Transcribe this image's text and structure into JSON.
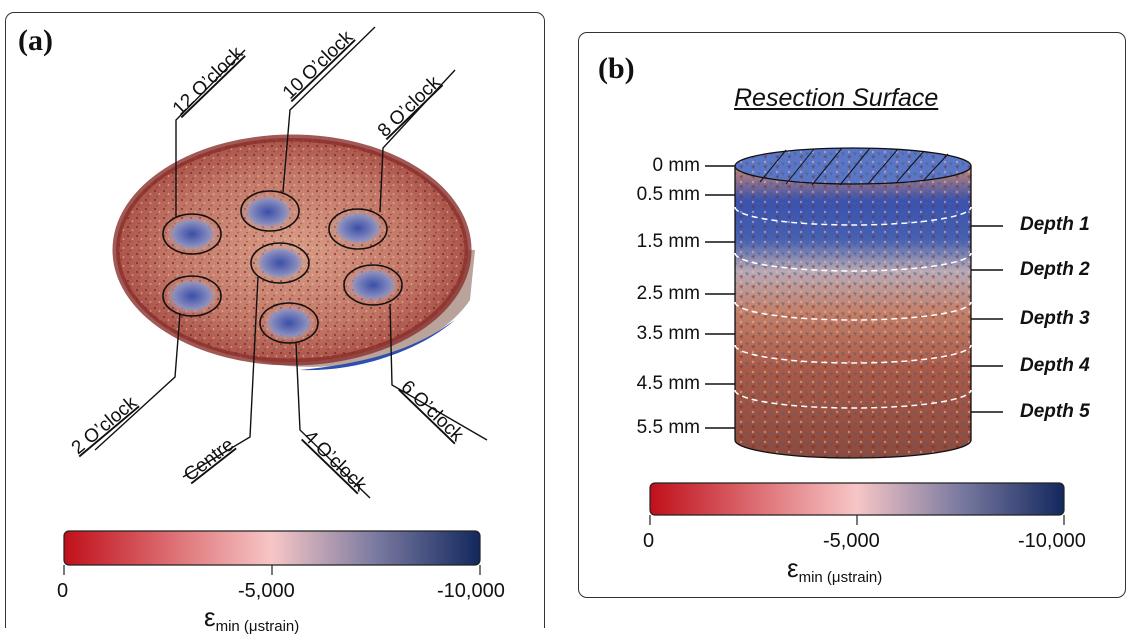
{
  "panel_a": {
    "label": "(a)",
    "regions": [
      {
        "key": "twelve",
        "label": "12 O’clock"
      },
      {
        "key": "ten",
        "label": "10 O’clock"
      },
      {
        "key": "eight",
        "label": "8 O’clock"
      },
      {
        "key": "two",
        "label": "2 O’clock"
      },
      {
        "key": "centre",
        "label": "Centre"
      },
      {
        "key": "four",
        "label": "4 O’clock"
      },
      {
        "key": "six",
        "label": "6 O’clock"
      }
    ],
    "colorbar": {
      "ticks": [
        "0",
        "-5,000",
        "-10,000"
      ],
      "symbol": "ε",
      "subscript": "min (μstrain)"
    }
  },
  "panel_b": {
    "label": "(b)",
    "title": "Resection Surface",
    "depth_marks": [
      "0 mm",
      "0.5 mm",
      "1.5 mm",
      "2.5 mm",
      "3.5 mm",
      "4.5 mm",
      "5.5 mm"
    ],
    "depths": [
      "Depth 1",
      "Depth 2",
      "Depth 3",
      "Depth 4",
      "Depth 5"
    ],
    "colorbar": {
      "ticks": [
        "0",
        "-5,000",
        "-10,000"
      ],
      "symbol": "ε",
      "subscript": "min (μstrain)"
    }
  },
  "colors": {
    "strain_low": "#c0101a",
    "strain_mid": "#f7c6c6",
    "strain_high": "#12285e",
    "bone_red": "#b04840",
    "bone_blue": "#3a4fa0"
  }
}
